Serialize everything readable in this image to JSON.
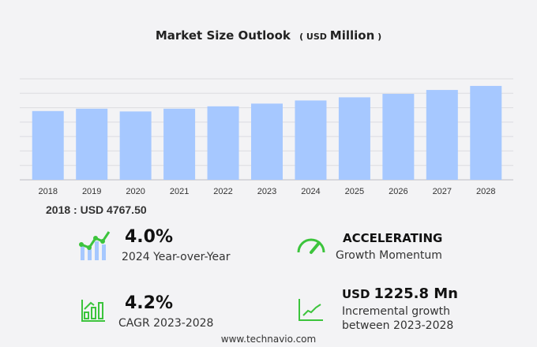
{
  "title": "Market Size Outlook",
  "unit_prefix": "( USD",
  "unit_main": "Million",
  "unit_suffix": ")",
  "base_label": "2018 : USD  4767.50",
  "stats": [
    {
      "value": "4.0%",
      "label": "2024 Year-over-Year",
      "icon": "bar-line-growth-icon"
    },
    {
      "value": "ACCELERATING",
      "label": "Growth Momentum",
      "icon": "speedometer-icon"
    },
    {
      "value": "4.2%",
      "label": "CAGR 2023-2028",
      "icon": "bar-chart-growth-icon"
    },
    {
      "value_prefix": "USD",
      "value": "1225.8 Mn",
      "label": "Incremental growth",
      "label2": "between 2023-2028",
      "icon": "trend-line-icon"
    }
  ],
  "footer": "www.technavio.com",
  "colors": {
    "bar": "#a6c8ff",
    "accent": "#3cc43c",
    "grid": "#dcdce0"
  },
  "chart_data": {
    "type": "bar",
    "title": "Market Size Outlook",
    "categories": [
      "2018",
      "2019",
      "2020",
      "2021",
      "2022",
      "2023",
      "2024",
      "2025",
      "2026",
      "2027",
      "2028"
    ],
    "values": [
      4767.5,
      4930,
      4740,
      4930,
      5095,
      5285,
      5500,
      5720,
      5960,
      6230,
      6511
    ],
    "ylim": [
      0,
      7000
    ],
    "grid": true
  }
}
